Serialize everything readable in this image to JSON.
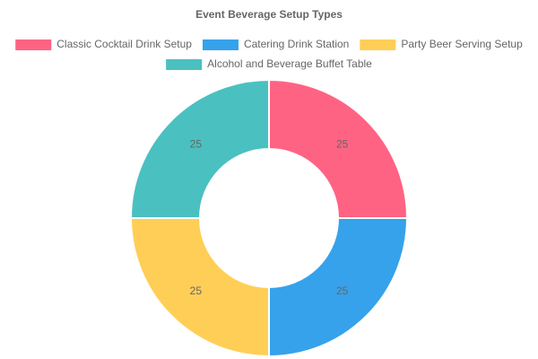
{
  "chart_data": {
    "type": "doughnut",
    "title": "Event Beverage Setup Types",
    "categories": [
      "Classic Cocktail Drink Setup",
      "Catering Drink Station",
      "Party Beer Serving Setup",
      "Alcohol and Beverage Buffet Table"
    ],
    "values": [
      25,
      25,
      25,
      25
    ],
    "colors": [
      "#ff6384",
      "#36a2eb",
      "#ffce56",
      "#4bc0c0"
    ],
    "legend": "top"
  }
}
